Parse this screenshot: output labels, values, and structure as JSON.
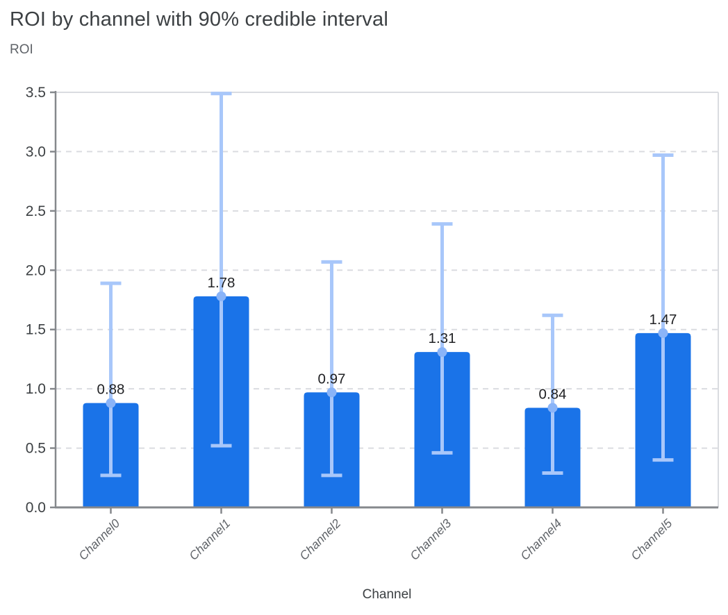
{
  "header": {
    "title": "ROI by channel with 90% credible interval"
  },
  "chart_data": {
    "type": "bar",
    "title": "ROI by channel with 90% credible interval",
    "xlabel": "Channel",
    "ylabel": "ROI",
    "categories": [
      "Channel0",
      "Channel1",
      "Channel2",
      "Channel3",
      "Channel4",
      "Channel5"
    ],
    "values": [
      0.88,
      1.78,
      0.97,
      1.31,
      0.84,
      1.47
    ],
    "value_labels": [
      "0.88",
      "1.78",
      "0.97",
      "1.31",
      "0.84",
      "1.47"
    ],
    "error_interval_label": "90% credible interval",
    "error_low": [
      0.27,
      0.52,
      0.27,
      0.46,
      0.29,
      0.4
    ],
    "error_high": [
      1.89,
      3.49,
      2.07,
      2.39,
      1.62,
      2.97
    ],
    "ylim": [
      0,
      3.5
    ],
    "ytick_step": 0.5,
    "ytick_labels": [
      "0.0",
      "0.5",
      "1.0",
      "1.5",
      "2.0",
      "2.5",
      "3.0",
      "3.5"
    ],
    "grid": "horizontal-dashed",
    "legend": "none",
    "colors": {
      "bar": "#1a73e8",
      "error_line": "#a8c7fa",
      "error_dot": "#8ab4f8",
      "grid_line": "#dadce0",
      "plot_border": "#dadce0",
      "axis_line": "#85888c",
      "title_text": "#3c4043",
      "ytick_text": "#3c4043",
      "category_text": "#5f6368",
      "value_label_text": "#202124",
      "axis_title_text": "#3c4043",
      "background": "#ffffff"
    }
  }
}
